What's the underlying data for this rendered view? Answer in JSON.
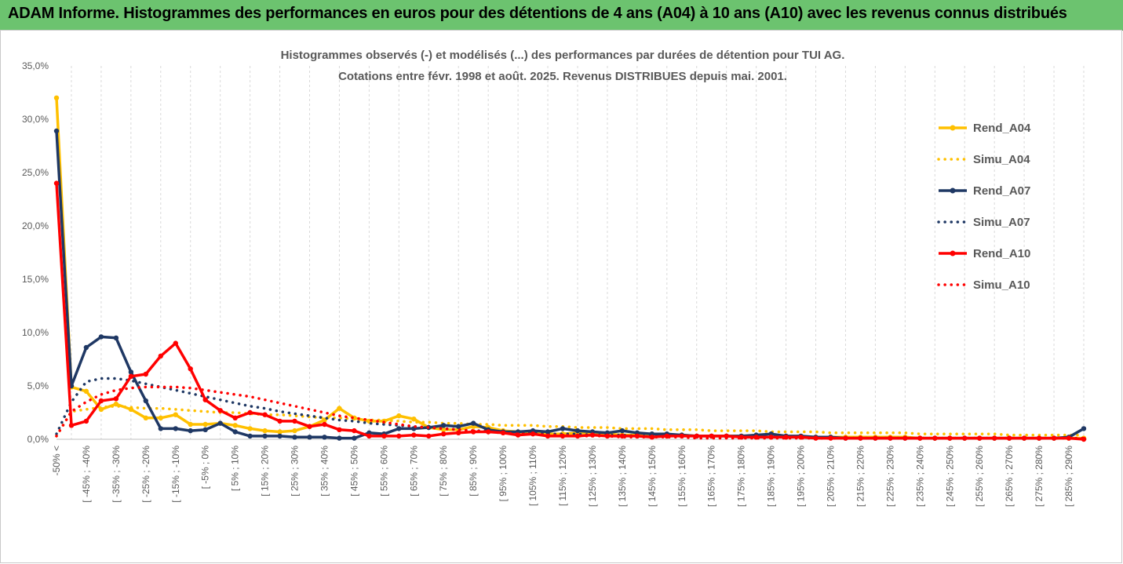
{
  "page": {
    "title": "ADAM Informe. Histogrammes des performances en euros pour des détentions de 4 ans (A04) à 10 ans (A10) avec les revenus connus distribués"
  },
  "colors": {
    "header_bg": "#6cc36f",
    "yellow": "#ffc000",
    "navy": "#1f3864",
    "red": "#ff0000",
    "grid": "#d9d9d9",
    "text": "#595959"
  },
  "chart_data": {
    "type": "line",
    "title_line1": "Histogrammes observés (-) et modélisés (...) des performances par durées de détention pour TUI AG.",
    "title_line2": "Cotations entre févr. 1998 et août. 2025. Revenus DISTRIBUES depuis mai. 2001.",
    "y_ticks": [
      "0,0%",
      "5,0%",
      "10,0%",
      "15,0%",
      "20,0%",
      "25,0%",
      "30,0%",
      "35,0%"
    ],
    "ylim": [
      0,
      35
    ],
    "grid": "vertical",
    "legend_position": "right",
    "x_labels": [
      "-50% <",
      "[ -45% ; -40%",
      "[ -35% ; -30%",
      "[ -25% ; -20%",
      "[ -15% ; -10%",
      "[ -5% ; 0%",
      "[ 5% ; 10%",
      "[ 15% ; 20%",
      "[ 25% ; 30%",
      "[ 35% ; 40%",
      "[ 45% ; 50%",
      "[ 55% ; 60%",
      "[ 65% ; 70%",
      "[ 75% ; 80%",
      "[ 85% ; 90%",
      "[ 95% ; 100%",
      "[ 105% ; 110%",
      "[ 115% ; 120%",
      "[ 125% ; 130%",
      "[ 135% ; 140%",
      "[ 145% ; 150%",
      "[ 155% ; 160%",
      "[ 165% ; 170%",
      "[ 175% ; 180%",
      "[ 185% ; 190%",
      "[ 195% ; 200%",
      "[ 205% ; 210%",
      "[ 215% ; 220%",
      "[ 225% ; 230%",
      "[ 235% ; 240%",
      "[ 245% ; 250%",
      "[ 255% ; 260%",
      "[ 265% ; 270%",
      "[ 275% ; 280%",
      "[ 285% ; 290%"
    ],
    "x_label_step": 2,
    "n_points": 70,
    "series": [
      {
        "name": "Rend_A04",
        "color": "#ffc000",
        "style": "solid",
        "values": [
          32.0,
          4.9,
          4.5,
          2.8,
          3.3,
          2.8,
          2.0,
          2.0,
          2.3,
          1.4,
          1.4,
          1.5,
          1.3,
          1.0,
          0.8,
          0.7,
          0.8,
          1.2,
          1.8,
          2.9,
          2.0,
          1.7,
          1.7,
          2.2,
          1.9,
          1.1,
          0.9,
          0.9,
          1.2,
          1.1,
          0.8,
          0.7,
          0.6,
          0.5,
          0.5,
          0.6,
          0.6,
          0.5,
          0.4,
          0.4,
          0.3,
          0.3,
          0.4,
          0.3,
          0.3,
          0.3,
          0.3,
          0.2,
          0.2,
          0.2,
          0.2,
          0.2,
          0.2,
          0.2,
          0.2,
          0.2,
          0.2,
          0.2,
          0.1,
          0.1,
          0.1,
          0.1,
          0.1,
          0.1,
          0.1,
          0.1,
          0.1,
          0.1,
          0.1,
          0.1
        ]
      },
      {
        "name": "Simu_A04",
        "color": "#ffc000",
        "style": "dotted",
        "values": [
          0.3,
          2.6,
          2.8,
          3.0,
          3.1,
          3.0,
          2.9,
          2.9,
          2.8,
          2.7,
          2.6,
          2.5,
          2.5,
          2.4,
          2.3,
          2.3,
          2.2,
          2.1,
          2.0,
          2.0,
          1.9,
          1.8,
          1.8,
          1.7,
          1.6,
          1.6,
          1.5,
          1.5,
          1.4,
          1.4,
          1.3,
          1.3,
          1.3,
          1.2,
          1.2,
          1.1,
          1.1,
          1.1,
          1.0,
          1.0,
          1.0,
          0.9,
          0.9,
          0.9,
          0.8,
          0.8,
          0.8,
          0.8,
          0.7,
          0.7,
          0.7,
          0.7,
          0.6,
          0.6,
          0.6,
          0.6,
          0.6,
          0.6,
          0.5,
          0.5,
          0.5,
          0.5,
          0.5,
          0.5,
          0.4,
          0.4,
          0.4,
          0.4,
          0.4,
          0.4
        ]
      },
      {
        "name": "Rend_A07",
        "color": "#1f3864",
        "style": "solid",
        "values": [
          28.9,
          5.0,
          8.6,
          9.6,
          9.5,
          6.3,
          3.6,
          1.0,
          1.0,
          0.8,
          0.9,
          1.5,
          0.7,
          0.3,
          0.3,
          0.3,
          0.2,
          0.2,
          0.2,
          0.1,
          0.1,
          0.6,
          0.5,
          1.0,
          1.0,
          1.1,
          1.3,
          1.2,
          1.5,
          0.9,
          0.7,
          0.7,
          0.8,
          0.7,
          1.0,
          0.8,
          0.7,
          0.6,
          0.8,
          0.6,
          0.5,
          0.5,
          0.4,
          0.3,
          0.3,
          0.3,
          0.3,
          0.4,
          0.5,
          0.3,
          0.3,
          0.2,
          0.2,
          0.1,
          0.1,
          0.1,
          0.1,
          0.1,
          0.1,
          0.1,
          0.1,
          0.1,
          0.1,
          0.1,
          0.1,
          0.1,
          0.1,
          0.1,
          0.2,
          1.0
        ]
      },
      {
        "name": "Simu_A07",
        "color": "#1f3864",
        "style": "dotted",
        "values": [
          0.5,
          3.5,
          5.4,
          5.7,
          5.7,
          5.5,
          5.2,
          4.9,
          4.6,
          4.3,
          4.0,
          3.7,
          3.4,
          3.1,
          2.9,
          2.6,
          2.4,
          2.2,
          2.0,
          1.8,
          1.7,
          1.5,
          1.4,
          1.3,
          1.2,
          1.1,
          1.0,
          0.9,
          0.8,
          0.8,
          0.7,
          0.6,
          0.6,
          0.5,
          0.5,
          0.5,
          0.4,
          0.4,
          0.4,
          0.3,
          0.3,
          0.3,
          0.3,
          0.3,
          0.2,
          0.2,
          0.2,
          0.2,
          0.2,
          0.2,
          0.2,
          0.1,
          0.1,
          0.1,
          0.1,
          0.1,
          0.1,
          0.1,
          0.1,
          0.1,
          0.1,
          0.1,
          0.1,
          0.1,
          0.1,
          0.1,
          0.1,
          0.1,
          0.1,
          0.1
        ]
      },
      {
        "name": "Rend_A10",
        "color": "#ff0000",
        "style": "solid",
        "values": [
          24.0,
          1.3,
          1.7,
          3.6,
          3.8,
          5.9,
          6.1,
          7.8,
          9.0,
          6.6,
          3.7,
          2.7,
          2.0,
          2.5,
          2.3,
          1.7,
          1.7,
          1.2,
          1.4,
          0.9,
          0.8,
          0.3,
          0.3,
          0.3,
          0.4,
          0.3,
          0.5,
          0.6,
          0.7,
          0.7,
          0.6,
          0.4,
          0.5,
          0.3,
          0.3,
          0.3,
          0.4,
          0.3,
          0.3,
          0.3,
          0.2,
          0.3,
          0.3,
          0.3,
          0.3,
          0.3,
          0.2,
          0.2,
          0.2,
          0.2,
          0.2,
          0.1,
          0.1,
          0.1,
          0.1,
          0.1,
          0.1,
          0.1,
          0.1,
          0.1,
          0.1,
          0.1,
          0.1,
          0.1,
          0.1,
          0.1,
          0.1,
          0.1,
          0.1,
          0.0
        ]
      },
      {
        "name": "Simu_A10",
        "color": "#ff0000",
        "style": "dotted",
        "values": [
          0.3,
          2.6,
          3.5,
          4.2,
          4.6,
          4.8,
          4.9,
          4.9,
          4.9,
          4.8,
          4.6,
          4.4,
          4.2,
          4.0,
          3.7,
          3.4,
          3.1,
          2.8,
          2.5,
          2.2,
          2.0,
          1.8,
          1.6,
          1.4,
          1.2,
          1.1,
          1.0,
          0.9,
          0.8,
          0.7,
          0.6,
          0.5,
          0.5,
          0.4,
          0.4,
          0.3,
          0.3,
          0.3,
          0.2,
          0.2,
          0.2,
          0.2,
          0.2,
          0.1,
          0.1,
          0.1,
          0.1,
          0.1,
          0.1,
          0.1,
          0.1,
          0.1,
          0.1,
          0.1,
          0.1,
          0.1,
          0.1,
          0.1,
          0.1,
          0.1,
          0.1,
          0.1,
          0.1,
          0.1,
          0.1,
          0.1,
          0.1,
          0.1,
          0.1,
          0.1
        ]
      }
    ]
  }
}
